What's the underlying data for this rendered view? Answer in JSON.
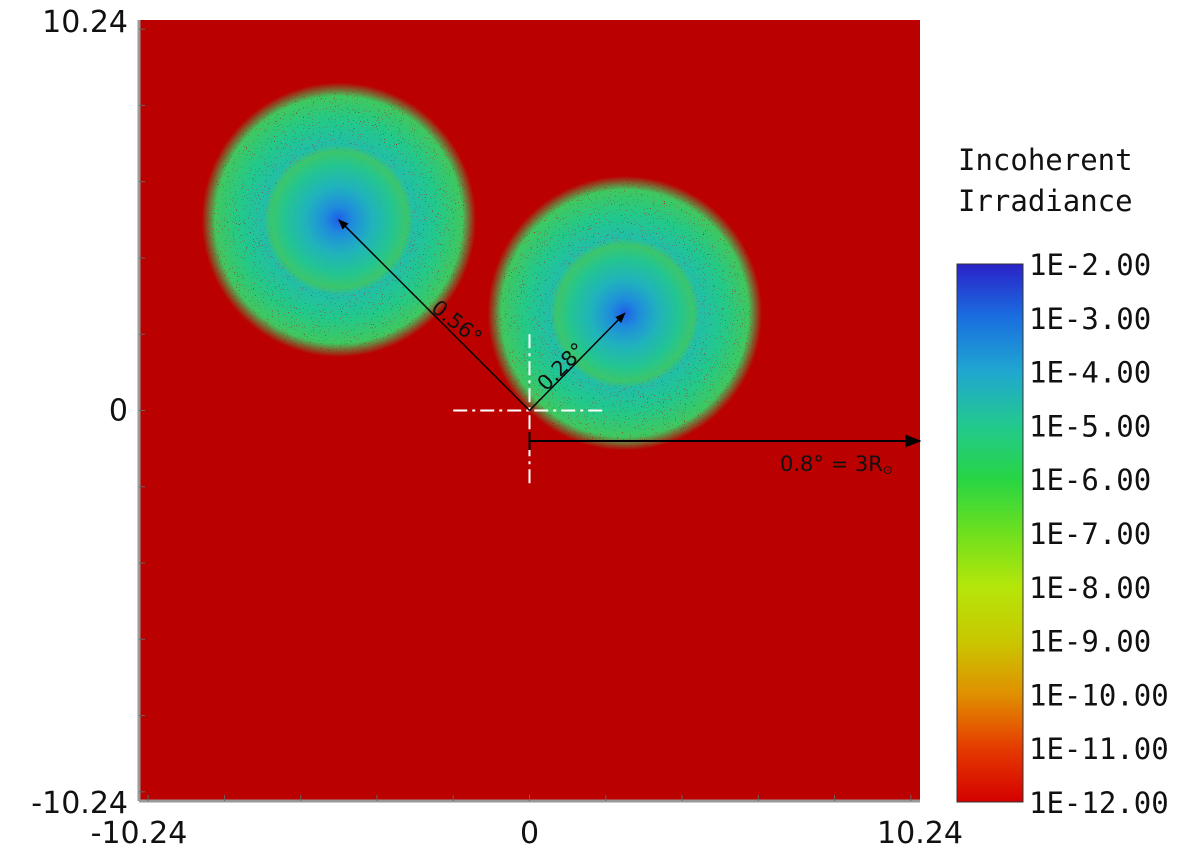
{
  "chart_data": {
    "type": "heatmap",
    "title": "",
    "xlabel": "",
    "ylabel": "",
    "xlim": [
      -10.24,
      10.24
    ],
    "ylim": [
      -10.24,
      10.24
    ],
    "x_ticks": [
      "-10.24",
      "0",
      "10.24"
    ],
    "y_ticks": [
      "-10.24",
      "0",
      "10.24"
    ],
    "background_color": "#bb0000",
    "colorbar": {
      "title_lines": [
        "Incoherent",
        "Irradiance"
      ],
      "labels": [
        "1E-2.00",
        "1E-3.00",
        "1E-4.00",
        "1E-5.00",
        "1E-6.00",
        "1E-7.00",
        "1E-8.00",
        "1E-9.00",
        "1E-10.00",
        "1E-11.00",
        "1E-12.00"
      ],
      "colors": [
        "#2a22c8",
        "#1a6fe0",
        "#1fa7d0",
        "#22c98f",
        "#27d544",
        "#6ee01e",
        "#b5e60a",
        "#c9c800",
        "#e09000",
        "#e53b00",
        "#d40000"
      ]
    },
    "spots": [
      {
        "x": -5.0,
        "y": 5.0,
        "radius": 3.6
      },
      {
        "x": 2.5,
        "y": 2.55,
        "radius": 3.6
      }
    ],
    "annotations": {
      "far_spot_label": "0.56°",
      "near_spot_label": "0.28°",
      "scale_bar_label": "0.8° = 3R",
      "scale_bar_symbol": "⊙"
    }
  }
}
